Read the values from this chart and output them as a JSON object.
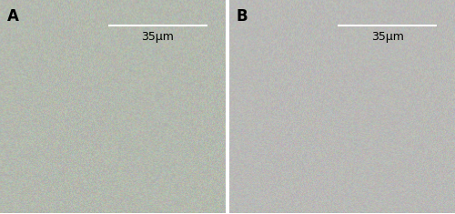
{
  "fig_width": 5.0,
  "fig_height": 2.35,
  "dpi": 100,
  "panel_labels": [
    "A",
    "B"
  ],
  "scale_bar_text": "35μm",
  "label_fontsize": 12,
  "scale_fontsize": 9,
  "bg_color_A": "#b8c4a8",
  "bg_color_B": "#c8cec0",
  "label_color": "black",
  "scale_bar_color": "white",
  "border_color": "white"
}
